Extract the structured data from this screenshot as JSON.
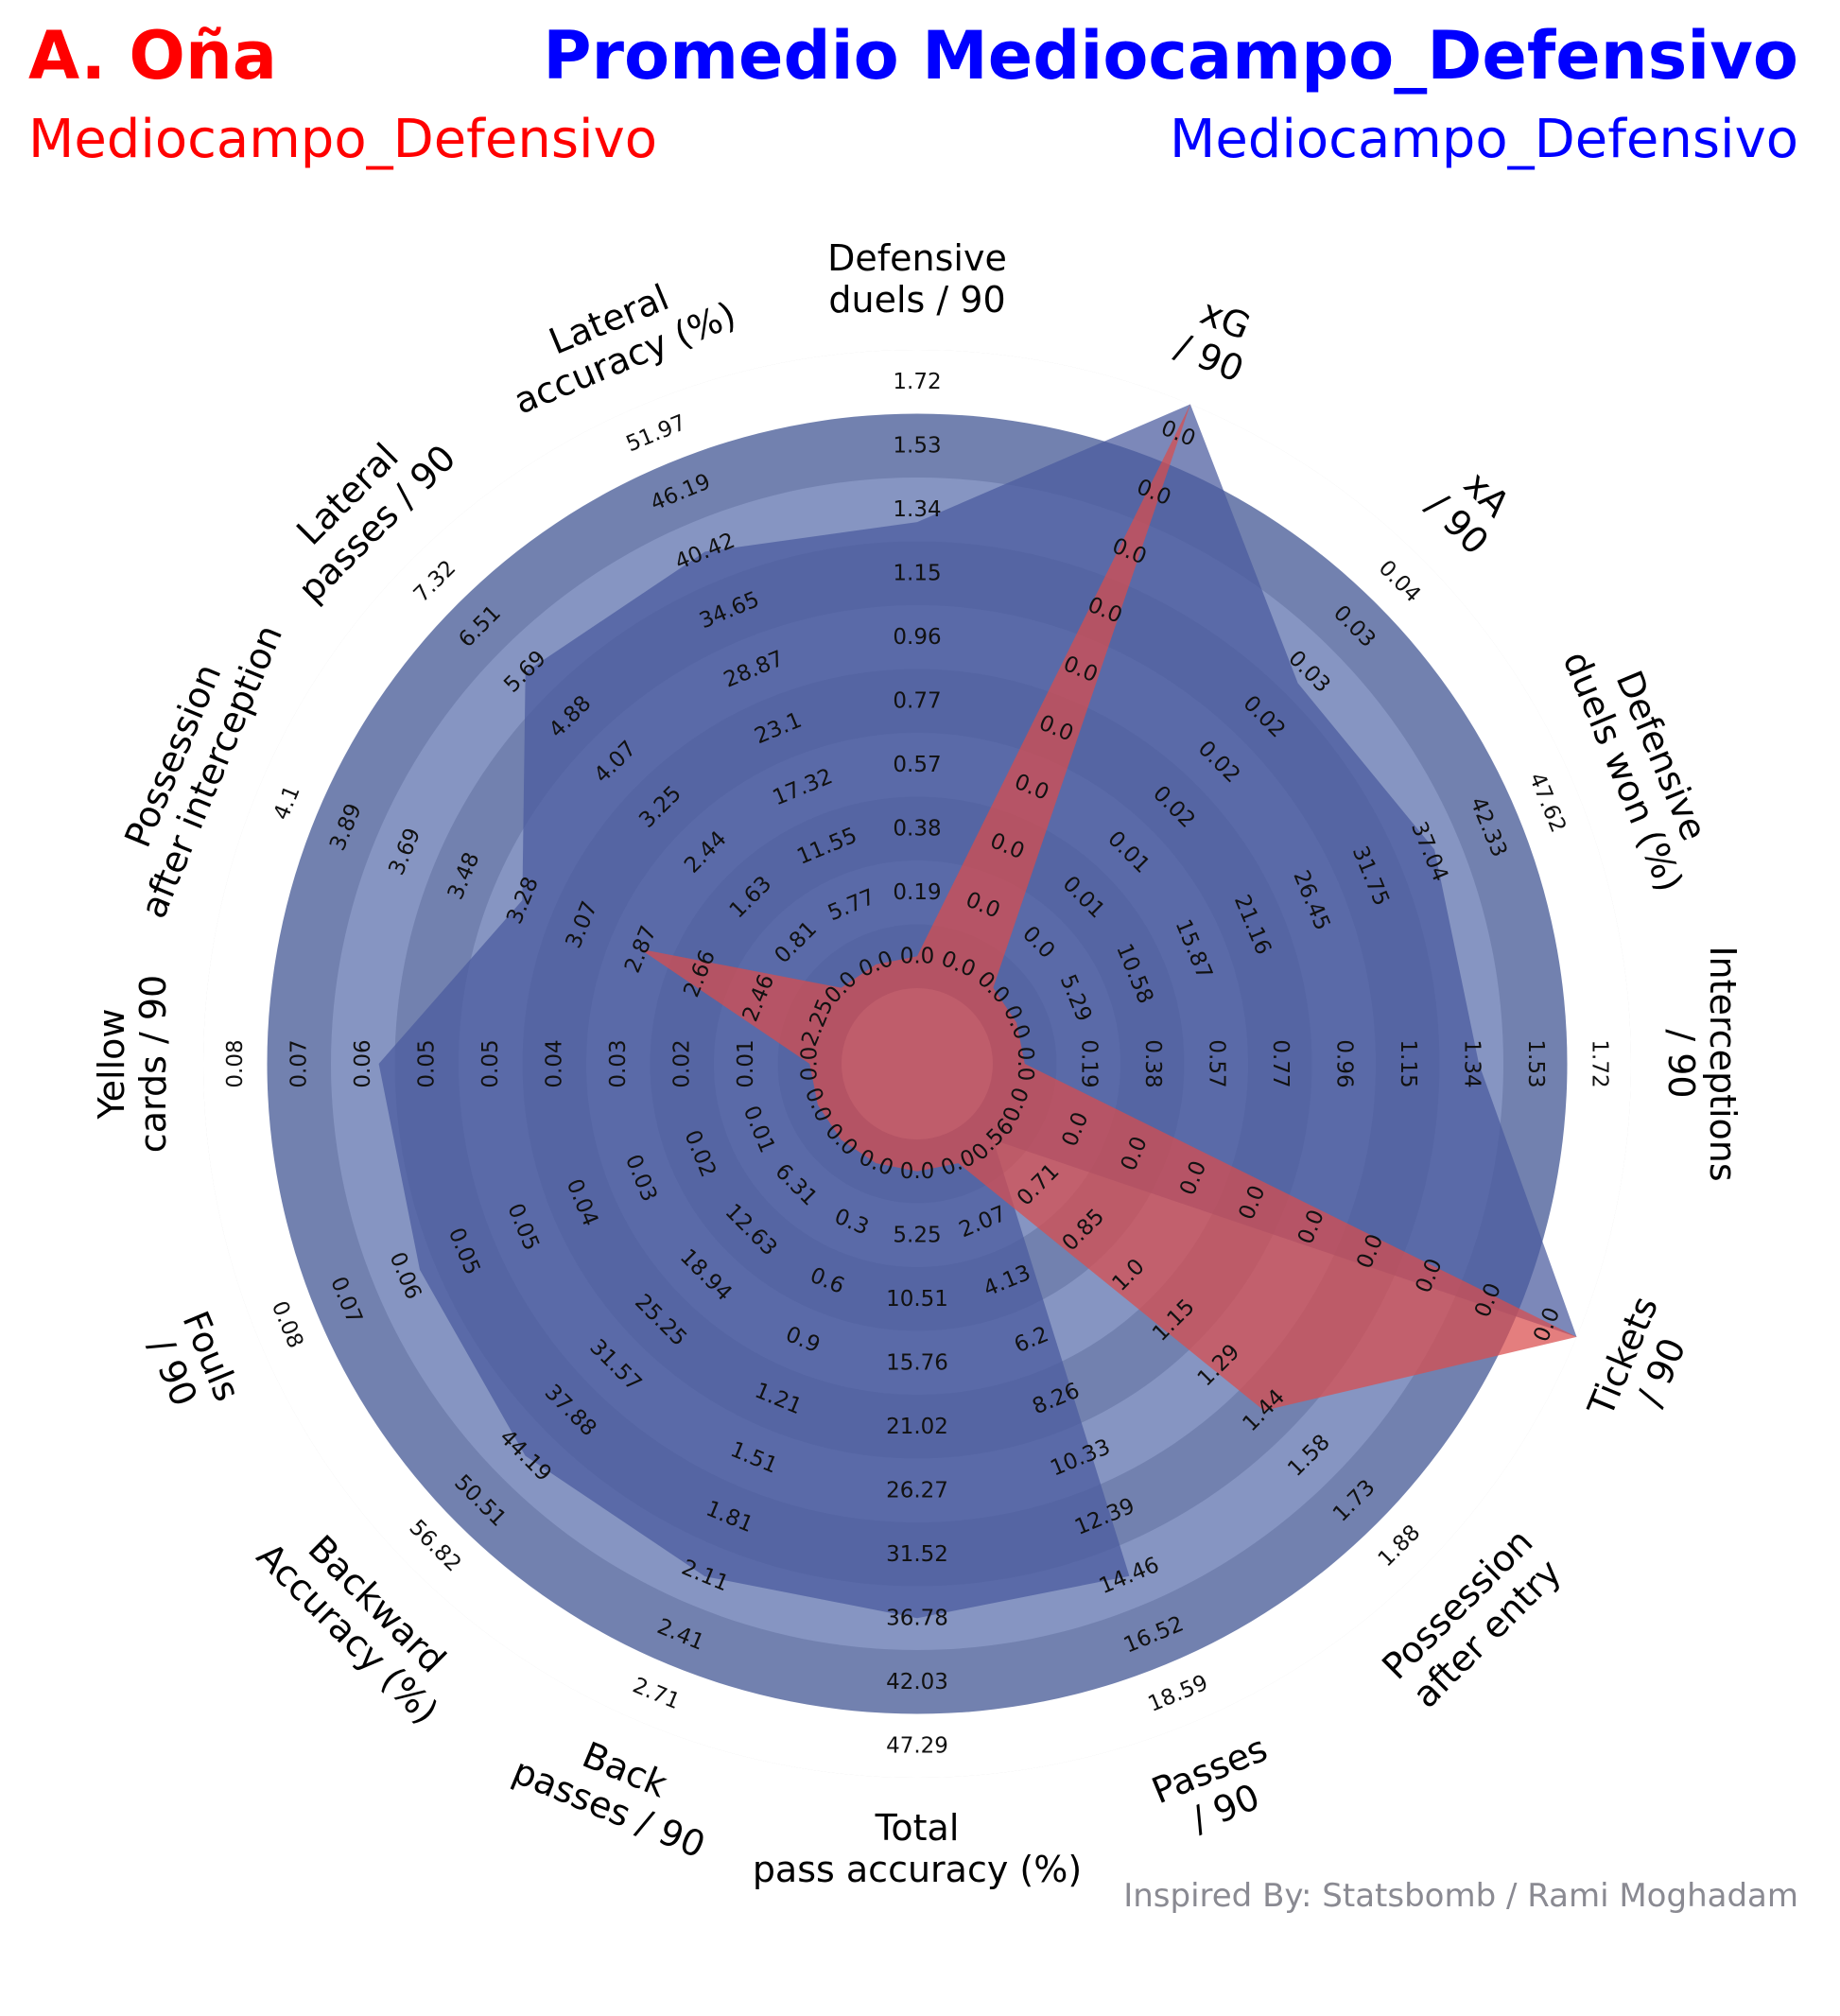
{
  "header": {
    "player_name": "A. Oña",
    "player_position": "Mediocampo_Defensivo",
    "compare_name": "Promedio Mediocampo_Defensivo",
    "compare_position": "Mediocampo_Defensivo"
  },
  "credit": "Inspired By: Statsbomb / Rami Moghadam",
  "colors": {
    "player": "#ff0000",
    "compare": "#0000ff",
    "player_fill": "#d94c4c",
    "compare_fill": "#4a5a9e",
    "ring_light": "#d6d6d6",
    "band_dark": "#7281af",
    "band_light": "#8695c2",
    "credit": "#8a8a92"
  },
  "chart_data": {
    "type": "radar",
    "title": "",
    "rings": 10,
    "parameters": [
      {
        "label": "Defensive\nduels / 90",
        "ticks": [
          "0.0",
          "0.19",
          "0.38",
          "0.57",
          "0.77",
          "0.96",
          "1.15",
          "1.34",
          "1.53",
          "1.72"
        ],
        "player": 0.0,
        "average": 1.3
      },
      {
        "label": "xG\n/ 90",
        "ticks": [
          "0.0",
          "0.0",
          "0.0",
          "0.0",
          "0.0",
          "0.0",
          "0.0",
          "0.0",
          "0.0",
          "0.0"
        ],
        "player_fraction": 1.0,
        "average_fraction": 1.0
      },
      {
        "label": "xA\n/ 90",
        "ticks": [
          "0.0",
          "0.0",
          "0.01",
          "0.01",
          "0.02",
          "0.02",
          "0.02",
          "0.03",
          "0.03",
          "0.04"
        ],
        "player": 0.0,
        "average": 0.03
      },
      {
        "label": "Defensive\nduels won (%)",
        "ticks": [
          "0.0",
          "5.29",
          "10.58",
          "15.87",
          "21.16",
          "26.45",
          "31.75",
          "37.04",
          "42.33",
          "47.62"
        ],
        "player": 0.0,
        "average": 37.5
      },
      {
        "label": "Interceptions\n/ 90",
        "ticks": [
          "0.0",
          "0.19",
          "0.38",
          "0.57",
          "0.77",
          "0.96",
          "1.15",
          "1.34",
          "1.53",
          "1.72"
        ],
        "player": 0.0,
        "average": 1.36
      },
      {
        "label": "Tickets\n/ 90",
        "ticks": [
          "0.0",
          "0.0",
          "0.0",
          "0.0",
          "0.0",
          "0.0",
          "0.0",
          "0.0",
          "0.0",
          "0.0"
        ],
        "player_fraction": 1.0,
        "average_fraction": 1.0
      },
      {
        "label": "Possession\nafter entry",
        "ticks": [
          "0.56",
          "0.71",
          "0.85",
          "1.0",
          "1.15",
          "1.29",
          "1.44",
          "1.58",
          "1.73",
          "1.88"
        ],
        "player": 1.44,
        "average": 0.56
      },
      {
        "label": "Passes\n/ 90",
        "ticks": [
          "0.0",
          "2.07",
          "4.13",
          "6.2",
          "8.26",
          "10.33",
          "12.39",
          "14.46",
          "16.52",
          "18.59"
        ],
        "player": 0.0,
        "average": 14.46
      },
      {
        "label": "Total\npass accuracy (%)",
        "ticks": [
          "0.0",
          "5.25",
          "10.51",
          "15.76",
          "21.02",
          "26.27",
          "31.52",
          "36.78",
          "42.03",
          "47.29"
        ],
        "player": 0.0,
        "average": 36.78
      },
      {
        "label": "Back\npasses / 90",
        "ticks": [
          "0.0",
          "0.3",
          "0.6",
          "0.9",
          "1.21",
          "1.51",
          "1.81",
          "2.11",
          "2.41",
          "2.71"
        ],
        "player": 0.0,
        "average": 2.11
      },
      {
        "label": "Backward\nAccuracy (%)",
        "ticks": [
          "0.0",
          "6.31",
          "12.63",
          "18.94",
          "25.25",
          "31.57",
          "37.88",
          "44.19",
          "50.51",
          "56.82"
        ],
        "player": 0.0,
        "average": 44.19
      },
      {
        "label": "Fouls\n/ 90",
        "ticks": [
          "0.0",
          "0.01",
          "0.02",
          "0.03",
          "0.04",
          "0.05",
          "0.05",
          "0.06",
          "0.07",
          "0.08"
        ],
        "player": 0.0,
        "average": 0.06
      },
      {
        "label": "Yellow\ncards / 90",
        "ticks": [
          "0.0",
          "0.01",
          "0.02",
          "0.03",
          "0.04",
          "0.05",
          "0.05",
          "0.06",
          "0.07",
          "0.08"
        ],
        "player": 0.0,
        "average": 0.06
      },
      {
        "label": "Possession\nafter interception",
        "ticks": [
          "2.25",
          "2.46",
          "2.66",
          "2.87",
          "3.07",
          "3.28",
          "3.48",
          "3.69",
          "3.89",
          "4.1"
        ],
        "player": 2.87,
        "average": 3.28
      },
      {
        "label": "Lateral\npasses / 90",
        "ticks": [
          "0.0",
          "0.81",
          "1.63",
          "2.44",
          "3.25",
          "4.07",
          "4.88",
          "5.69",
          "6.51",
          "7.32"
        ],
        "player": 0.0,
        "average": 5.69
      },
      {
        "label": "Lateral\naccuracy (%)",
        "ticks": [
          "0.0",
          "5.77",
          "11.55",
          "17.32",
          "23.1",
          "28.87",
          "34.65",
          "40.42",
          "46.19",
          "51.97"
        ],
        "player": 0.0,
        "average": 40.42
      }
    ],
    "series": [
      {
        "name": "A. Oña",
        "key": "player",
        "color": "#d94c4c"
      },
      {
        "name": "Promedio Mediocampo_Defensivo",
        "key": "average",
        "color": "#4a5a9e"
      }
    ]
  }
}
